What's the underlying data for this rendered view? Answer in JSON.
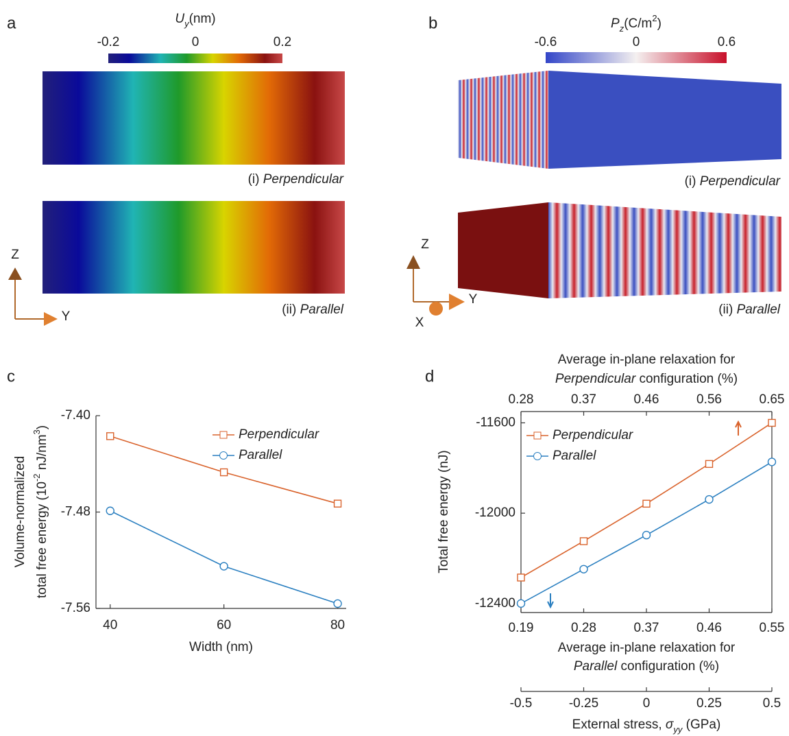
{
  "figure": {
    "a": {
      "label": "a",
      "colorbar_title": [
        "U",
        "y",
        "(nm)"
      ],
      "clim": [
        -0.2,
        0.2
      ],
      "colorbar_ticks": [
        -0.2,
        0,
        0.2
      ],
      "views": [
        [
          "(i) ",
          "Perpendicular"
        ],
        [
          "(ii) ",
          "Parallel"
        ]
      ],
      "axes": [
        "Z",
        "Y"
      ]
    },
    "b": {
      "label": "b",
      "colorbar_title": [
        "P",
        "z",
        "(C/m",
        "2",
        ")"
      ],
      "clim": [
        -0.6,
        0.6
      ],
      "colorbar_ticks": [
        -0.6,
        0,
        0.6
      ],
      "views": [
        [
          "(i) ",
          "Perpendicular"
        ],
        [
          "(ii) ",
          "Parallel"
        ]
      ],
      "axes": [
        "Z",
        "Y",
        "X"
      ]
    }
  },
  "chart_data": [
    {
      "type": "line",
      "label": "c",
      "x": [
        40,
        60,
        80
      ],
      "xlim": [
        37.5,
        81.5
      ],
      "xticks": [
        40,
        60,
        80
      ],
      "ylim": [
        -7.56,
        -7.4
      ],
      "yticks": [
        {
          "value": -7.4,
          "label": "-7.40"
        },
        {
          "value": -7.48,
          "label": "-7.48"
        },
        {
          "value": -7.56,
          "label": "-7.56"
        }
      ],
      "xlabel": "Width (nm)",
      "ylabel": [
        "Volume-normalized",
        "total free energy (10",
        "-2",
        " nJ/nm",
        "3",
        ")"
      ],
      "legend": "upper right",
      "series": [
        {
          "name": "Perpendicular",
          "color": "#d9622b",
          "marker": "square",
          "values": [
            -7.417,
            -7.447,
            -7.473
          ]
        },
        {
          "name": "Parallel",
          "color": "#2a7fc0",
          "marker": "circle",
          "values": [
            -7.479,
            -7.525,
            -7.556
          ]
        }
      ]
    },
    {
      "type": "line",
      "label": "d",
      "x": [
        -0.5,
        -0.25,
        0,
        0.25,
        0.5
      ],
      "xlim": [
        -0.5,
        0.5
      ],
      "xticks": [
        -0.5,
        -0.25,
        0,
        0.25,
        0.5
      ],
      "xlabel": [
        "External stress, ",
        "σ",
        "yy",
        " (GPa)"
      ],
      "x_bottom_ticks": [
        {
          "value": -0.5,
          "label": "0.19"
        },
        {
          "value": -0.25,
          "label": "0.28"
        },
        {
          "value": 0,
          "label": "0.37"
        },
        {
          "value": 0.25,
          "label": "0.46"
        },
        {
          "value": 0.5,
          "label": "0.55"
        }
      ],
      "x_bottom_label": [
        "Average in-plane relaxation for",
        "Parallel",
        " configuration (%)"
      ],
      "x_top_ticks": [
        {
          "value": -0.5,
          "label": "0.28"
        },
        {
          "value": -0.25,
          "label": "0.37"
        },
        {
          "value": 0,
          "label": "0.46"
        },
        {
          "value": 0.25,
          "label": "0.56"
        },
        {
          "value": 0.5,
          "label": "0.65"
        }
      ],
      "x_top_label": [
        "Average in-plane relaxation for",
        "Perpendicular",
        " configuration (%)"
      ],
      "ylim": [
        -12440,
        -11550
      ],
      "yticks": [
        -11600,
        -12000,
        -12400
      ],
      "ylabel": "Total free energy (nJ)",
      "legend": "upper left",
      "series": [
        {
          "name": "Perpendicular",
          "color": "#d9622b",
          "marker": "square",
          "values": [
            -12285,
            -12124,
            -11958,
            -11782,
            -11600
          ]
        },
        {
          "name": "Parallel",
          "color": "#2a7fc0",
          "marker": "circle",
          "values": [
            -12400,
            -12248,
            -12097,
            -11939,
            -11773
          ]
        }
      ]
    }
  ]
}
